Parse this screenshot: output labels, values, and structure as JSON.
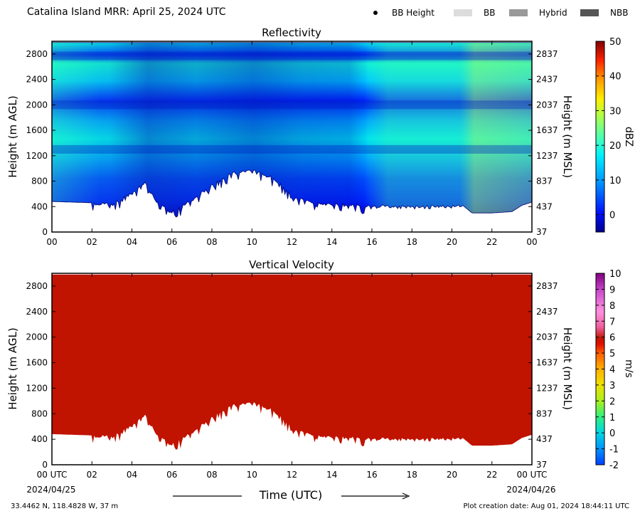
{
  "title": "Catalina Island MRR:  April 25, 2024 UTC",
  "legend": [
    {
      "label": "BB Height",
      "kind": "dot",
      "color": "#000000"
    },
    {
      "label": "BB",
      "kind": "swatch",
      "color": "#dcdcdc"
    },
    {
      "label": "Hybrid",
      "kind": "swatch",
      "color": "#999999"
    },
    {
      "label": "NBB",
      "kind": "swatch",
      "color": "#555555"
    }
  ],
  "xaxis_label": "Time (UTC)",
  "date_start": "2024/04/25",
  "date_end": "2024/04/26",
  "location": "33.4462 N, 118.4828 W, 37 m",
  "creation_date": "Plot creation date: Aug 01, 2024 18:44:11 UTC",
  "chart_data": [
    {
      "type": "heatmap",
      "title": "Reflectivity",
      "ylabel": "Height (m AGL)",
      "y2label": "Height (m MSL)",
      "colorbar_label": "dBZ",
      "x_ticks": [
        "00",
        "02",
        "04",
        "06",
        "08",
        "10",
        "12",
        "14",
        "16",
        "18",
        "20",
        "22",
        "00"
      ],
      "xlim": [
        0,
        24
      ],
      "y_ticks": [
        0,
        400,
        800,
        1200,
        1600,
        2000,
        2400,
        2800
      ],
      "y2_ticks": [
        37,
        437,
        837,
        1237,
        1637,
        2037,
        2437,
        2837
      ],
      "ylim": [
        0,
        3000
      ],
      "colorbar_ticks": [
        0,
        10,
        20,
        30,
        40,
        50
      ],
      "colorbar_range": [
        -5,
        50
      ],
      "echo_base_m": [
        [
          0,
          480
        ],
        [
          2,
          460
        ],
        [
          3,
          470
        ],
        [
          4,
          620
        ],
        [
          4.7,
          820
        ],
        [
          5.2,
          480
        ],
        [
          6,
          330
        ],
        [
          7,
          520
        ],
        [
          8,
          760
        ],
        [
          9,
          950
        ],
        [
          10,
          1000
        ],
        [
          11,
          880
        ],
        [
          12,
          620
        ],
        [
          13,
          470
        ],
        [
          14,
          450
        ],
        [
          16,
          430
        ],
        [
          18,
          420
        ],
        [
          20.5,
          430
        ],
        [
          21,
          300
        ],
        [
          22,
          300
        ],
        [
          23,
          320
        ],
        [
          23.5,
          420
        ],
        [
          24,
          470
        ]
      ],
      "echo_top_m": 2980,
      "band_minima_m": [
        1300,
        2000,
        2770
      ],
      "values_dbz_range": [
        -2,
        22
      ]
    },
    {
      "type": "heatmap",
      "title": "Vertical Velocity",
      "ylabel": "Height (m AGL)",
      "y2label": "Height (m MSL)",
      "colorbar_label": "m/s",
      "x_ticks": [
        "00 UTC",
        "02",
        "04",
        "06",
        "08",
        "10",
        "12",
        "14",
        "16",
        "18",
        "20",
        "22",
        "00 UTC"
      ],
      "xlim": [
        0,
        24
      ],
      "y_ticks": [
        0,
        400,
        800,
        1200,
        1600,
        2000,
        2400,
        2800
      ],
      "y2_ticks": [
        37,
        437,
        837,
        1237,
        1637,
        2037,
        2437,
        2837
      ],
      "ylim": [
        0,
        3000
      ],
      "colorbar_ticks": [
        -2,
        -1,
        0,
        1,
        2,
        3,
        4,
        5,
        6,
        7,
        8,
        9,
        10
      ],
      "colorbar_range": [
        -2,
        10
      ],
      "echo_base_m": [
        [
          0,
          480
        ],
        [
          2,
          460
        ],
        [
          3,
          470
        ],
        [
          4,
          620
        ],
        [
          4.7,
          820
        ],
        [
          5.2,
          480
        ],
        [
          6,
          330
        ],
        [
          7,
          520
        ],
        [
          8,
          760
        ],
        [
          9,
          950
        ],
        [
          10,
          1000
        ],
        [
          11,
          880
        ],
        [
          12,
          620
        ],
        [
          13,
          470
        ],
        [
          14,
          450
        ],
        [
          16,
          430
        ],
        [
          18,
          420
        ],
        [
          20.5,
          430
        ],
        [
          21,
          300
        ],
        [
          22,
          300
        ],
        [
          23,
          320
        ],
        [
          23.5,
          420
        ],
        [
          24,
          470
        ]
      ],
      "echo_top_m": 2980,
      "dominant_value_ms": 6
    }
  ]
}
